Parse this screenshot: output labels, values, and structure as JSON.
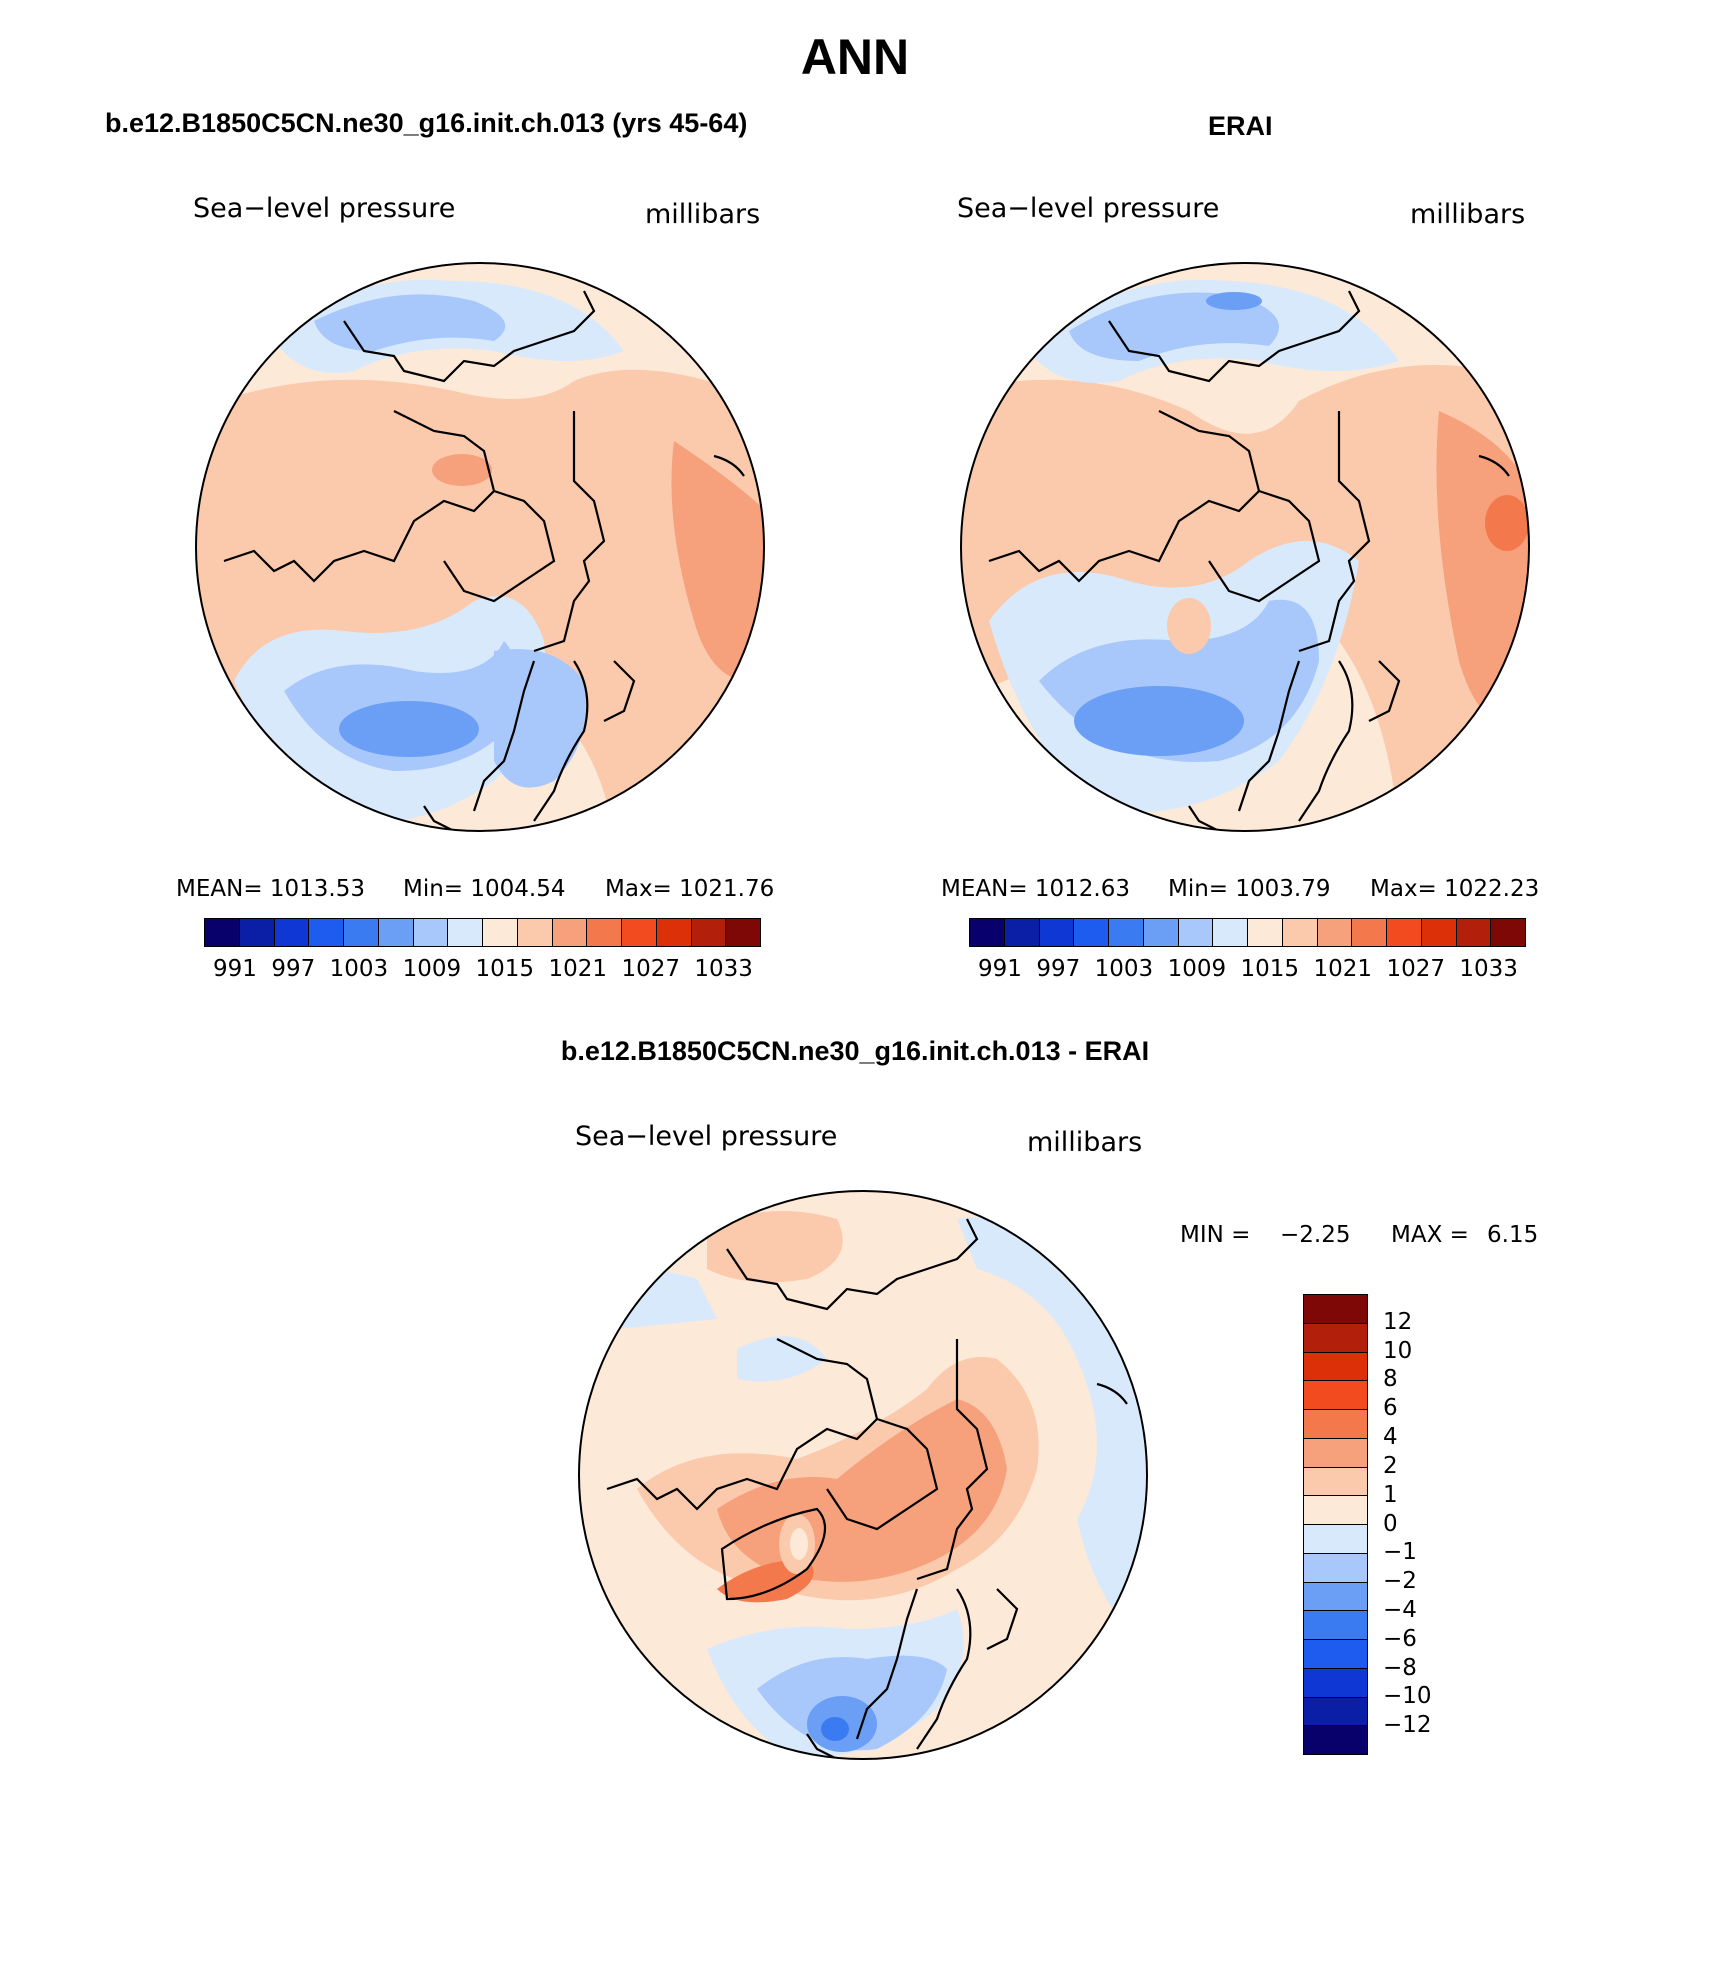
{
  "title": "ANN",
  "panels": [
    {
      "title": "b.e12.B1850C5CN.ne30_g16.init.ch.013 (yrs 45-64)",
      "variable": "Sea−level pressure",
      "units": "millibars",
      "stats": {
        "mean": "MEAN= 1013.53",
        "min": "Min= 1004.54",
        "max": "Max= 1021.76"
      }
    },
    {
      "title": "ERAI",
      "variable": "Sea−level pressure",
      "units": "millibars",
      "stats": {
        "mean": "MEAN= 1012.63",
        "min": "Min= 1003.79",
        "max": "Max= 1022.23"
      }
    },
    {
      "title": "b.e12.B1850C5CN.ne30_g16.init.ch.013 - ERAI",
      "variable": "Sea−level pressure",
      "units": "millibars",
      "stats": {
        "min_label": "MIN =",
        "min": "−2.25",
        "max_label": "MAX =",
        "max": "6.15"
      }
    }
  ],
  "colorbars": {
    "absolute": {
      "colors": [
        "#08006b",
        "#0a1fa6",
        "#0f37d3",
        "#1e5cf0",
        "#3a7bf2",
        "#6b9ff5",
        "#a8c7fa",
        "#d9e9fc",
        "#fde9d8",
        "#fbc9ab",
        "#f6a07c",
        "#f3794d",
        "#f24b20",
        "#dc3009",
        "#b2200b",
        "#7d0806"
      ],
      "labels": [
        "991",
        "997",
        "1003",
        "1009",
        "1015",
        "1021",
        "1027",
        "1033"
      ]
    },
    "difference": {
      "colors": [
        "#7d0806",
        "#b2200b",
        "#dc3009",
        "#f24b20",
        "#f3794d",
        "#f6a07c",
        "#fbc9ab",
        "#fde9d8",
        "#d9e9fc",
        "#a8c7fa",
        "#6b9ff5",
        "#3a7bf2",
        "#1e5cf0",
        "#0f37d3",
        "#0a1fa6",
        "#08006b"
      ],
      "labels": [
        "12",
        "10",
        "8",
        "6",
        "4",
        "2",
        "1",
        "0",
        "−1",
        "−2",
        "−4",
        "−6",
        "−8",
        "−10",
        "−12"
      ]
    }
  }
}
